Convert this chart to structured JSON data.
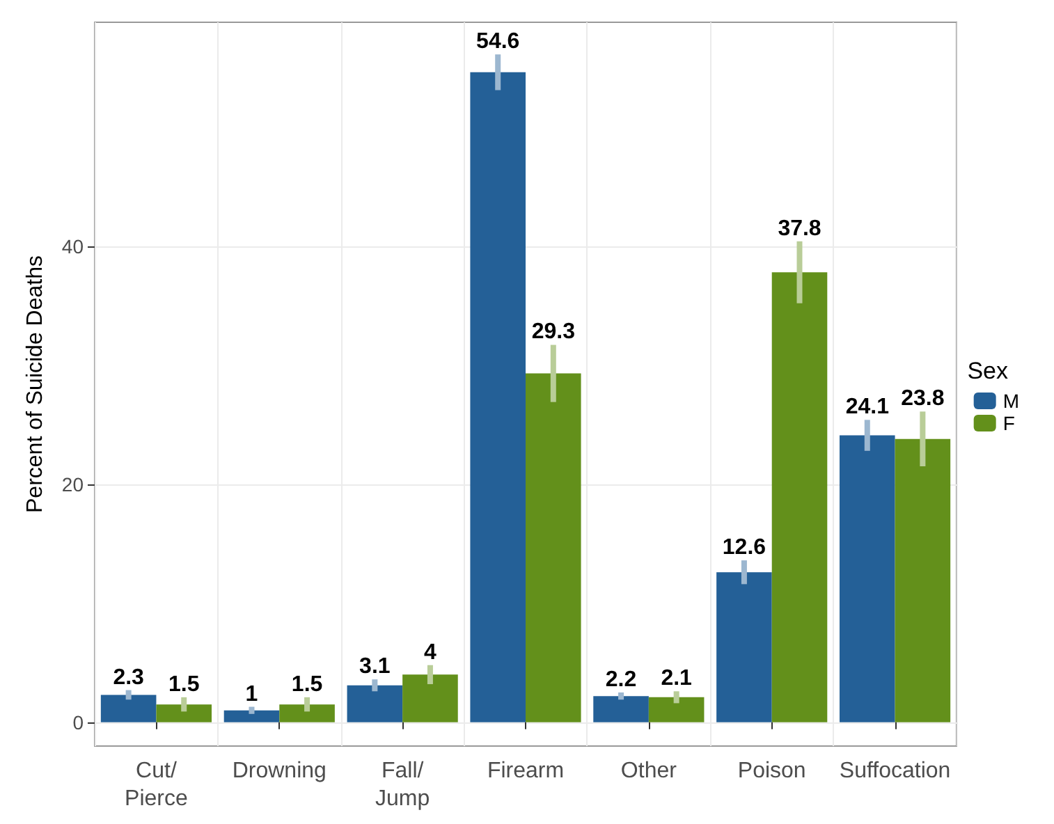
{
  "chart_data": {
    "type": "bar",
    "ylabel": "Percent of Suicide Deaths",
    "legend_title": "Sex",
    "categories": [
      "Cut/\nPierce",
      "Drowning",
      "Fall/\nJump",
      "Firearm",
      "Other",
      "Poison",
      "Suffocation"
    ],
    "series": [
      {
        "name": "M",
        "color": "#246097",
        "values": [
          2.3,
          1,
          3.1,
          54.6,
          2.2,
          12.6,
          24.1
        ],
        "errors": [
          0.4,
          0.3,
          0.5,
          1.5,
          0.3,
          1.0,
          1.3
        ]
      },
      {
        "name": "F",
        "color": "#63901b",
        "values": [
          1.5,
          1.5,
          4,
          29.3,
          2.1,
          37.8,
          23.8
        ],
        "errors": [
          0.6,
          0.6,
          0.8,
          2.4,
          0.5,
          2.6,
          2.3
        ]
      }
    ],
    "ylim": [
      -2,
      58.8
    ],
    "yticks": [
      0,
      20,
      40
    ],
    "grid": true,
    "legend": "right",
    "data_labels": true
  }
}
